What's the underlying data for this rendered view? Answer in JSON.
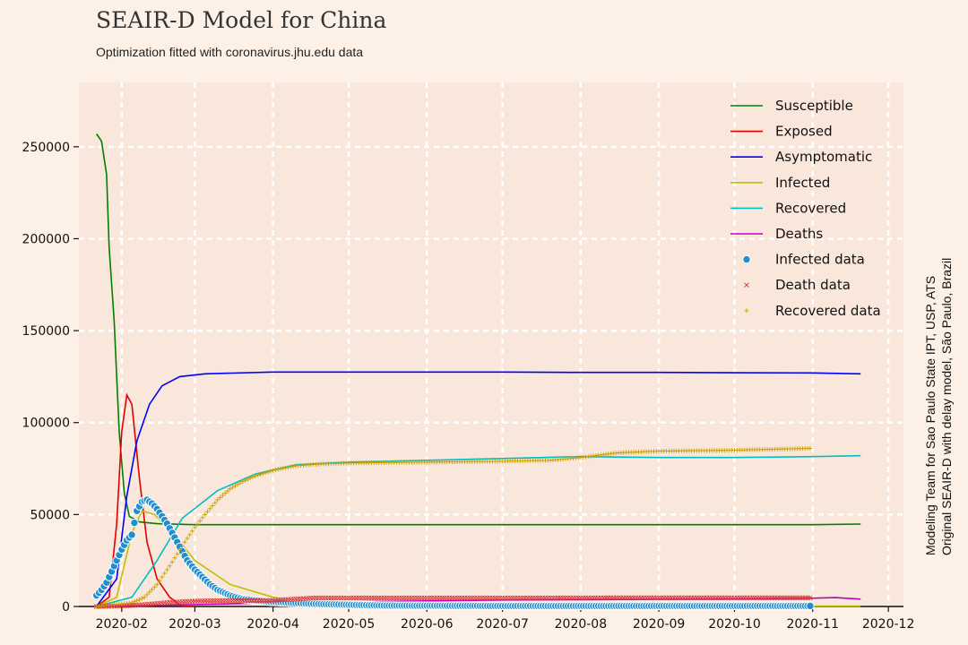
{
  "header": {
    "title": "SEAIR-D Model for China",
    "subtitle": "Optimization fitted with coronavirus.jhu.edu data"
  },
  "side_note": {
    "line1": "Modeling Team for Sao Paulo State IPT, USP, ATS",
    "line2": "Original SEAIR-D with delay model, São Paulo, Brazil"
  },
  "colors": {
    "background": "#fdf1e7",
    "plot_area": "#f9e7dc",
    "Susceptible": "#008000",
    "Exposed": "#e00000",
    "Asymptomatic": "#0000ff",
    "Infected": "#bfbf00",
    "Recovered": "#00bfbf",
    "Deaths": "#bf00bf",
    "Infected data": "#1f8fd0",
    "Death data": "#e03030",
    "Recovered data": "#c8a000"
  },
  "chart_data": {
    "type": "line",
    "title": "SEAIR-D Model for China",
    "subtitle": "Optimization fitted with coronavirus.jhu.edu data",
    "xlabel": "",
    "ylabel": "",
    "x_ticks": [
      "2020-02",
      "2020-03",
      "2020-04",
      "2020-05",
      "2020-06",
      "2020-07",
      "2020-08",
      "2020-09",
      "2020-10",
      "2020-11",
      "2020-12"
    ],
    "y_ticks": [
      0,
      50000,
      100000,
      150000,
      200000,
      250000
    ],
    "xlim": [
      "2020-01-15",
      "2020-12-07"
    ],
    "ylim": [
      0,
      285000
    ],
    "grid": true,
    "legend": "top-right",
    "series": [
      {
        "name": "Susceptible",
        "kind": "line",
        "points": [
          [
            "2020-01-22",
            257000
          ],
          [
            "2020-01-24",
            253000
          ],
          [
            "2020-01-26",
            235000
          ],
          [
            "2020-01-27",
            195000
          ],
          [
            "2020-01-29",
            155000
          ],
          [
            "2020-01-31",
            95000
          ],
          [
            "2020-02-02",
            62000
          ],
          [
            "2020-02-04",
            49000
          ],
          [
            "2020-02-08",
            46000
          ],
          [
            "2020-02-15",
            45000
          ],
          [
            "2020-03-01",
            44500
          ],
          [
            "2020-04-01",
            44500
          ],
          [
            "2020-05-01",
            44500
          ],
          [
            "2020-06-01",
            44500
          ],
          [
            "2020-07-01",
            44500
          ],
          [
            "2020-08-01",
            44500
          ],
          [
            "2020-09-01",
            44500
          ],
          [
            "2020-10-01",
            44500
          ],
          [
            "2020-11-01",
            44500
          ],
          [
            "2020-11-20",
            44800
          ]
        ]
      },
      {
        "name": "Exposed",
        "kind": "line",
        "points": [
          [
            "2020-01-22",
            0
          ],
          [
            "2020-01-27",
            5000
          ],
          [
            "2020-01-30",
            45000
          ],
          [
            "2020-02-01",
            95000
          ],
          [
            "2020-02-03",
            115000
          ],
          [
            "2020-02-05",
            110000
          ],
          [
            "2020-02-08",
            70000
          ],
          [
            "2020-02-11",
            35000
          ],
          [
            "2020-02-15",
            15000
          ],
          [
            "2020-02-20",
            5000
          ],
          [
            "2020-02-25",
            0
          ],
          [
            "2020-03-01",
            0
          ]
        ]
      },
      {
        "name": "Asymptomatic",
        "kind": "line",
        "points": [
          [
            "2020-01-22",
            0
          ],
          [
            "2020-01-30",
            15000
          ],
          [
            "2020-02-03",
            60000
          ],
          [
            "2020-02-07",
            90000
          ],
          [
            "2020-02-12",
            110000
          ],
          [
            "2020-02-17",
            120000
          ],
          [
            "2020-02-24",
            125000
          ],
          [
            "2020-03-05",
            126500
          ],
          [
            "2020-04-01",
            127500
          ],
          [
            "2020-05-01",
            127500
          ],
          [
            "2020-06-01",
            127500
          ],
          [
            "2020-07-01",
            127500
          ],
          [
            "2020-08-01",
            127300
          ],
          [
            "2020-09-01",
            127300
          ],
          [
            "2020-10-01",
            127100
          ],
          [
            "2020-11-01",
            127000
          ],
          [
            "2020-11-20",
            126500
          ]
        ]
      },
      {
        "name": "Infected",
        "kind": "line",
        "points": [
          [
            "2020-01-22",
            0
          ],
          [
            "2020-01-30",
            5000
          ],
          [
            "2020-02-05",
            40000
          ],
          [
            "2020-02-09",
            52000
          ],
          [
            "2020-02-14",
            50000
          ],
          [
            "2020-02-20",
            42000
          ],
          [
            "2020-03-01",
            25000
          ],
          [
            "2020-03-15",
            12000
          ],
          [
            "2020-04-01",
            5000
          ],
          [
            "2020-04-15",
            2000
          ],
          [
            "2020-05-01",
            1000
          ],
          [
            "2020-06-01",
            500
          ],
          [
            "2020-08-01",
            300
          ],
          [
            "2020-11-20",
            200
          ]
        ]
      },
      {
        "name": "Recovered",
        "kind": "line",
        "points": [
          [
            "2020-01-22",
            0
          ],
          [
            "2020-02-05",
            5000
          ],
          [
            "2020-02-15",
            25000
          ],
          [
            "2020-02-25",
            48000
          ],
          [
            "2020-03-10",
            63000
          ],
          [
            "2020-03-25",
            72000
          ],
          [
            "2020-04-10",
            77000
          ],
          [
            "2020-05-01",
            78500
          ],
          [
            "2020-06-01",
            79500
          ],
          [
            "2020-07-01",
            80500
          ],
          [
            "2020-08-01",
            81500
          ],
          [
            "2020-09-01",
            81000
          ],
          [
            "2020-10-01",
            81000
          ],
          [
            "2020-11-01",
            81500
          ],
          [
            "2020-11-20",
            82000
          ]
        ]
      },
      {
        "name": "Deaths",
        "kind": "line",
        "points": [
          [
            "2020-01-22",
            0
          ],
          [
            "2020-03-01",
            1000
          ],
          [
            "2020-04-01",
            2000
          ],
          [
            "2020-05-01",
            2500
          ],
          [
            "2020-06-01",
            3000
          ],
          [
            "2020-07-01",
            3500
          ],
          [
            "2020-08-01",
            3700
          ],
          [
            "2020-09-01",
            3900
          ],
          [
            "2020-10-01",
            4100
          ],
          [
            "2020-10-31",
            4500
          ],
          [
            "2020-11-10",
            4800
          ],
          [
            "2020-11-20",
            4000
          ]
        ]
      },
      {
        "name": "Infected data",
        "kind": "points",
        "points": [
          [
            "2020-01-22",
            6000
          ],
          [
            "2020-01-24",
            9000
          ],
          [
            "2020-01-26",
            13000
          ],
          [
            "2020-01-28",
            19000
          ],
          [
            "2020-01-30",
            25000
          ],
          [
            "2020-02-01",
            31000
          ],
          [
            "2020-02-03",
            36000
          ],
          [
            "2020-02-05",
            39000
          ],
          [
            "2020-02-07",
            52000
          ],
          [
            "2020-02-09",
            57000
          ],
          [
            "2020-02-11",
            58000
          ],
          [
            "2020-02-13",
            56000
          ],
          [
            "2020-02-15",
            53000
          ],
          [
            "2020-02-17",
            49000
          ],
          [
            "2020-02-19",
            45000
          ],
          [
            "2020-02-21",
            40000
          ],
          [
            "2020-02-23",
            35000
          ],
          [
            "2020-02-25",
            30000
          ],
          [
            "2020-02-27",
            25000
          ],
          [
            "2020-03-01",
            20000
          ],
          [
            "2020-03-04",
            16000
          ],
          [
            "2020-03-07",
            12000
          ],
          [
            "2020-03-10",
            9000
          ],
          [
            "2020-03-15",
            6000
          ],
          [
            "2020-03-20",
            4000
          ],
          [
            "2020-03-31",
            2500
          ],
          [
            "2020-04-15",
            1500
          ],
          [
            "2020-05-15",
            500
          ],
          [
            "2020-07-01",
            300
          ],
          [
            "2020-09-01",
            300
          ],
          [
            "2020-10-31",
            300
          ]
        ]
      },
      {
        "name": "Death data",
        "kind": "points",
        "points": [
          [
            "2020-01-22",
            0
          ],
          [
            "2020-02-01",
            300
          ],
          [
            "2020-02-10",
            1000
          ],
          [
            "2020-02-20",
            2200
          ],
          [
            "2020-03-01",
            2900
          ],
          [
            "2020-03-15",
            3200
          ],
          [
            "2020-04-01",
            3300
          ],
          [
            "2020-04-17",
            4600
          ],
          [
            "2020-05-15",
            4600
          ],
          [
            "2020-06-15",
            4600
          ],
          [
            "2020-07-15",
            4600
          ],
          [
            "2020-08-15",
            4700
          ],
          [
            "2020-09-15",
            4700
          ],
          [
            "2020-10-15",
            4700
          ],
          [
            "2020-10-31",
            4700
          ]
        ]
      },
      {
        "name": "Recovered data",
        "kind": "points",
        "points": [
          [
            "2020-01-22",
            0
          ],
          [
            "2020-02-05",
            2000
          ],
          [
            "2020-02-10",
            5000
          ],
          [
            "2020-02-15",
            12000
          ],
          [
            "2020-02-20",
            22000
          ],
          [
            "2020-02-25",
            33000
          ],
          [
            "2020-03-01",
            43000
          ],
          [
            "2020-03-05",
            50000
          ],
          [
            "2020-03-10",
            58000
          ],
          [
            "2020-03-15",
            64000
          ],
          [
            "2020-03-20",
            68000
          ],
          [
            "2020-03-25",
            71000
          ],
          [
            "2020-04-01",
            74000
          ],
          [
            "2020-04-10",
            76500
          ],
          [
            "2020-04-20",
            77500
          ],
          [
            "2020-05-01",
            78000
          ],
          [
            "2020-06-01",
            78500
          ],
          [
            "2020-07-01",
            79000
          ],
          [
            "2020-07-20",
            79500
          ],
          [
            "2020-08-01",
            81000
          ],
          [
            "2020-08-15",
            83500
          ],
          [
            "2020-09-01",
            84500
          ],
          [
            "2020-10-01",
            85000
          ],
          [
            "2020-10-31",
            86000
          ]
        ]
      }
    ]
  }
}
